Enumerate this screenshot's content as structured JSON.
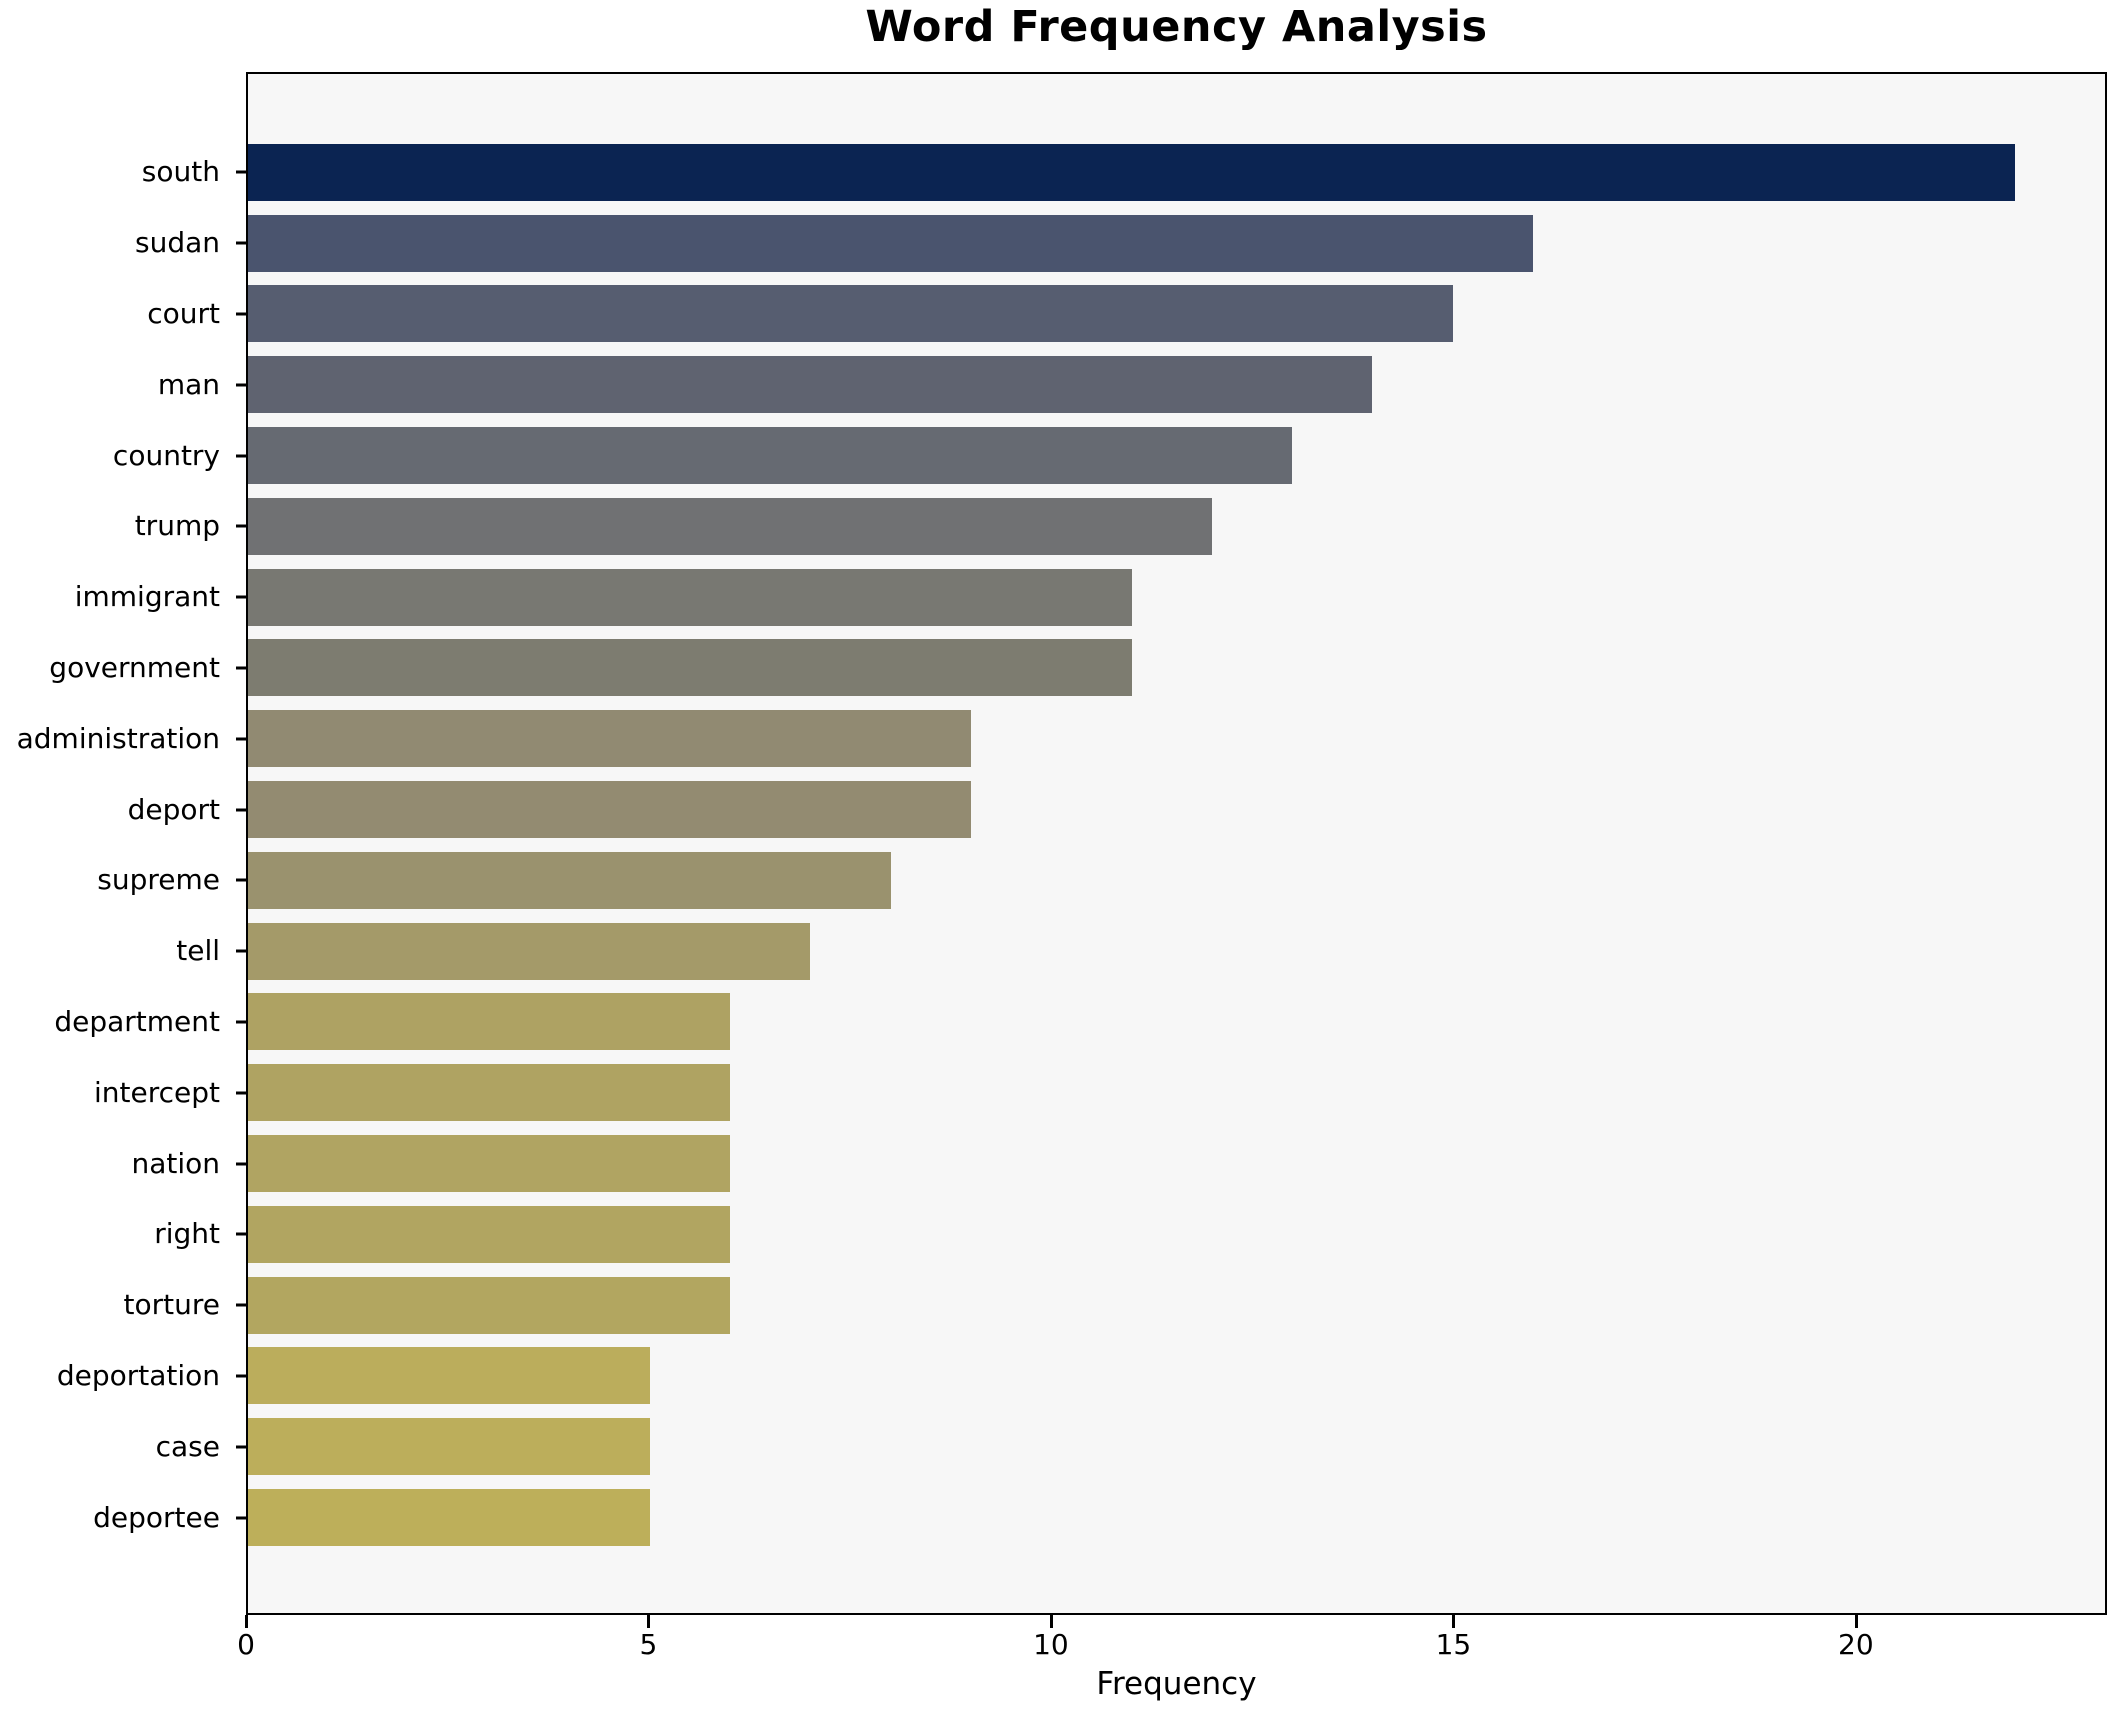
{
  "title": "Word Frequency Analysis",
  "chart_data": {
    "type": "bar",
    "orientation": "horizontal",
    "title": "Word Frequency Analysis",
    "xlabel": "Frequency",
    "ylabel": "",
    "categories": [
      "south",
      "sudan",
      "court",
      "man",
      "country",
      "trump",
      "immigrant",
      "government",
      "administration",
      "deport",
      "supreme",
      "tell",
      "department",
      "intercept",
      "nation",
      "right",
      "torture",
      "deportation",
      "case",
      "deportee"
    ],
    "values": [
      22,
      16,
      15,
      14,
      13,
      12,
      11,
      11,
      9,
      9,
      8,
      7,
      6,
      6,
      6,
      6,
      6,
      5,
      5,
      5
    ],
    "bar_colors": [
      "#0b2452",
      "#4a546e",
      "#565d70",
      "#5f6370",
      "#666a72",
      "#707173",
      "#787872",
      "#7d7c70",
      "#918a72",
      "#938b71",
      "#9a926e",
      "#a49a69",
      "#aea263",
      "#afa362",
      "#b0a462",
      "#b1a561",
      "#b2a660",
      "#bbad5c",
      "#bcae5b",
      "#bdaf5a"
    ],
    "xlim": [
      0,
      23.12
    ],
    "xticks": [
      0,
      5,
      10,
      15,
      20
    ],
    "grid": false,
    "legend": "none",
    "plot_background": "#f7f7f7",
    "figure_background": "#ffffff",
    "spine_color": "#000000"
  }
}
